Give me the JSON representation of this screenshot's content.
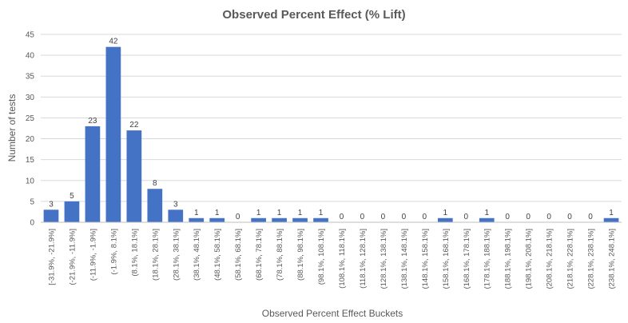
{
  "chart_data": {
    "type": "bar",
    "title": "Observed Percent Effect (% Lift)",
    "xlabel": "Observed Percent Effect Buckets",
    "ylabel": "Number of tests",
    "ylim": [
      0,
      45
    ],
    "yticks": [
      0,
      5,
      10,
      15,
      20,
      25,
      30,
      35,
      40,
      45
    ],
    "grid": true,
    "bar_color": "#4472c4",
    "categories": [
      "[-31.9%, -21.9%]",
      "(-21.9%, -11.9%]",
      "(-11.9%, -1.9%]",
      "(-1.9%, 8.1%]",
      "(8.1%, 18.1%]",
      "(18.1%, 28.1%]",
      "(28.1%, 38.1%]",
      "(38.1%, 48.1%]",
      "(48.1%, 58.1%]",
      "(58.1%, 68.1%]",
      "(68.1%, 78.1%]",
      "(78.1%, 88.1%]",
      "(88.1%, 98.1%]",
      "(98.1%, 108.1%]",
      "(108.1%, 118.1%]",
      "(118.1%, 128.1%]",
      "(128.1%, 138.1%]",
      "(138.1%, 148.1%]",
      "(148.1%, 158.1%]",
      "(158.1%, 168.1%]",
      "(168.1%, 178.1%]",
      "(178.1%, 188.1%]",
      "(188.1%, 198.1%]",
      "(198.1%, 208.1%]",
      "(208.1%, 218.1%]",
      "(218.1%, 228.1%]",
      "(228.1%, 238.1%]",
      "(238.1%, 248.1%]"
    ],
    "values": [
      3,
      5,
      23,
      42,
      22,
      8,
      3,
      1,
      1,
      0,
      1,
      1,
      1,
      1,
      0,
      0,
      0,
      0,
      0,
      1,
      0,
      1,
      0,
      0,
      0,
      0,
      0,
      1
    ]
  }
}
